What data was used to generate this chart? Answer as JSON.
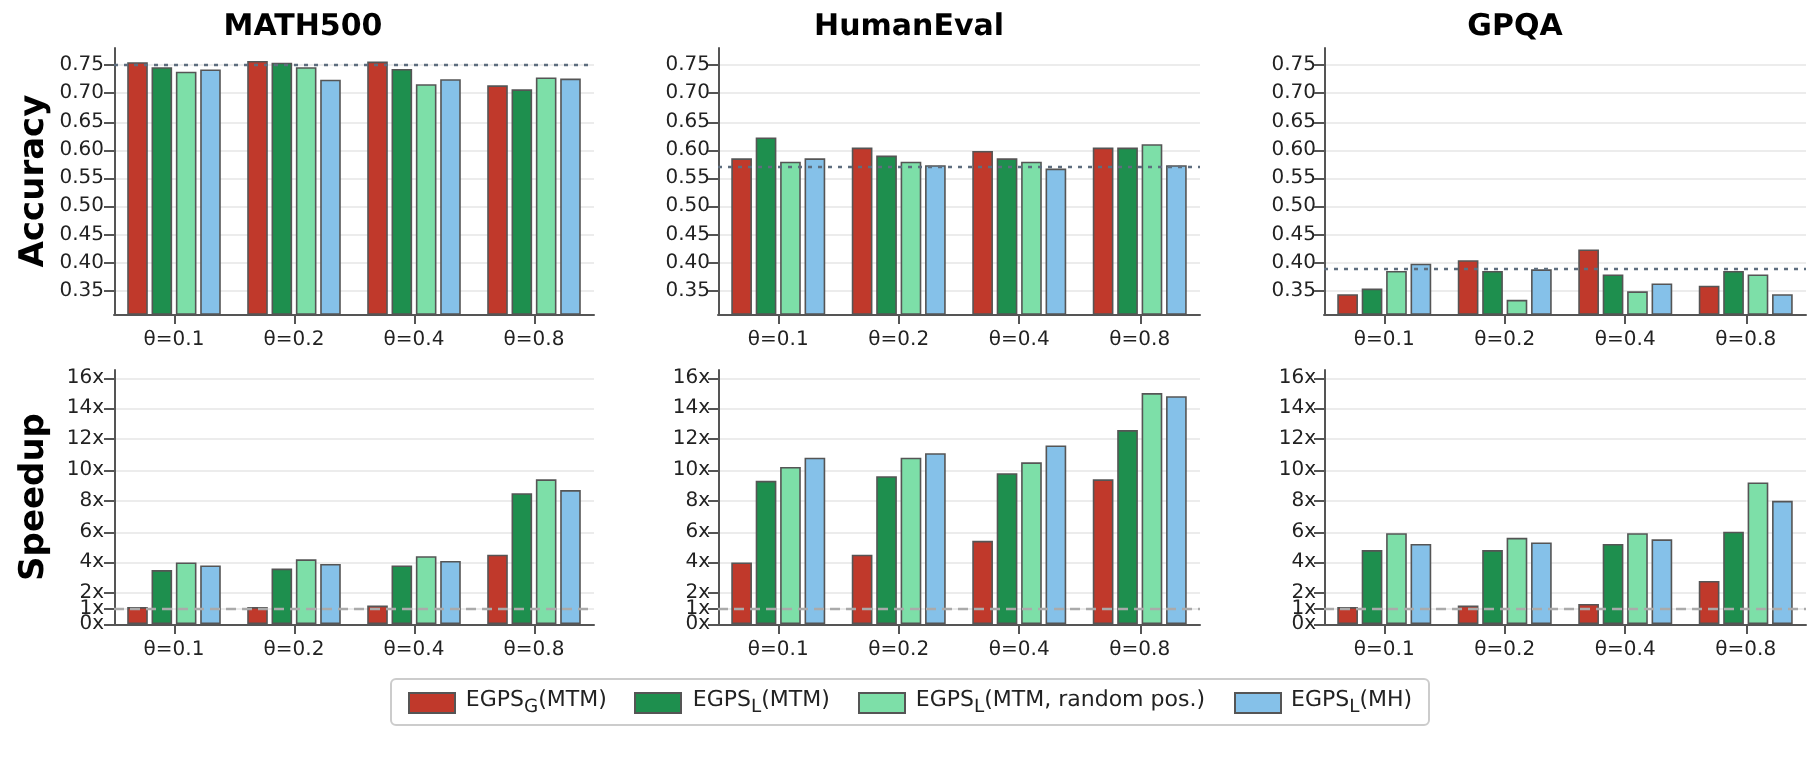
{
  "chart_data": [
    {
      "type": "bar",
      "title": "MATH500",
      "ylabel": "Accuracy",
      "categories": [
        "θ=0.1",
        "θ=0.2",
        "θ=0.4",
        "θ=0.8"
      ],
      "ylim": [
        0.31,
        0.78
      ],
      "yticks": [
        {
          "value": 0.35,
          "label": "0.35"
        },
        {
          "value": 0.4,
          "label": "0.40"
        },
        {
          "value": 0.45,
          "label": "0.45"
        },
        {
          "value": 0.5,
          "label": "0.50"
        },
        {
          "value": 0.55,
          "label": "0.55"
        },
        {
          "value": 0.6,
          "label": "0.60"
        },
        {
          "value": 0.65,
          "label": "0.65"
        },
        {
          "value": 0.7,
          "label": "0.70"
        },
        {
          "value": 0.75,
          "label": "0.75"
        }
      ],
      "grid": "y",
      "legend": "bottom",
      "ref_lines": [
        {
          "axis": "y",
          "value": 0.748,
          "color": "#5d6d7e",
          "line_style": "dotted"
        }
      ],
      "series": [
        {
          "name": "EGPS$_{G}$(MTM)",
          "color": "#c0392b",
          "values": [
            0.755,
            0.757,
            0.756,
            0.714
          ]
        },
        {
          "name": "EGPS$_{L}$(MTM)",
          "color": "#1e8f4e",
          "values": [
            0.746,
            0.754,
            0.743,
            0.707
          ]
        },
        {
          "name": "EGPS$_{L}$(MTM, random pos.)",
          "color": "#7ddfa8",
          "values": [
            0.738,
            0.746,
            0.716,
            0.728
          ]
        },
        {
          "name": "EGPS$_{L}$(MH)",
          "color": "#85c1e9",
          "values": [
            0.742,
            0.724,
            0.725,
            0.726
          ]
        }
      ]
    },
    {
      "type": "bar",
      "title": "HumanEval",
      "categories": [
        "θ=0.1",
        "θ=0.2",
        "θ=0.4",
        "θ=0.8"
      ],
      "ylim": [
        0.31,
        0.78
      ],
      "yticks": [
        {
          "value": 0.35,
          "label": "0.35"
        },
        {
          "value": 0.4,
          "label": "0.40"
        },
        {
          "value": 0.45,
          "label": "0.45"
        },
        {
          "value": 0.5,
          "label": "0.50"
        },
        {
          "value": 0.55,
          "label": "0.55"
        },
        {
          "value": 0.6,
          "label": "0.60"
        },
        {
          "value": 0.65,
          "label": "0.65"
        },
        {
          "value": 0.7,
          "label": "0.70"
        },
        {
          "value": 0.75,
          "label": "0.75"
        }
      ],
      "grid": "y",
      "legend": "bottom",
      "ref_lines": [
        {
          "axis": "y",
          "value": 0.573,
          "color": "#5d6d7e",
          "line_style": "dotted"
        }
      ],
      "series": [
        {
          "name": "EGPS$_{G}$(MTM)",
          "color": "#c0392b",
          "values": [
            0.585,
            0.604,
            0.598,
            0.604
          ]
        },
        {
          "name": "EGPS$_{L}$(MTM)",
          "color": "#1e8f4e",
          "values": [
            0.622,
            0.59,
            0.585,
            0.604
          ]
        },
        {
          "name": "EGPS$_{L}$(MTM, random pos.)",
          "color": "#7ddfa8",
          "values": [
            0.579,
            0.579,
            0.579,
            0.61
          ]
        },
        {
          "name": "EGPS$_{L}$(MH)",
          "color": "#85c1e9",
          "values": [
            0.585,
            0.573,
            0.567,
            0.573
          ]
        }
      ]
    },
    {
      "type": "bar",
      "title": "GPQA",
      "categories": [
        "θ=0.1",
        "θ=0.2",
        "θ=0.4",
        "θ=0.8"
      ],
      "ylim": [
        0.31,
        0.78
      ],
      "yticks": [
        {
          "value": 0.35,
          "label": "0.35"
        },
        {
          "value": 0.4,
          "label": "0.40"
        },
        {
          "value": 0.45,
          "label": "0.45"
        },
        {
          "value": 0.5,
          "label": "0.50"
        },
        {
          "value": 0.55,
          "label": "0.55"
        },
        {
          "value": 0.6,
          "label": "0.60"
        },
        {
          "value": 0.65,
          "label": "0.65"
        },
        {
          "value": 0.7,
          "label": "0.70"
        },
        {
          "value": 0.75,
          "label": "0.75"
        }
      ],
      "grid": "y",
      "legend": "bottom",
      "ref_lines": [
        {
          "axis": "y",
          "value": 0.389,
          "color": "#5d6d7e",
          "line_style": "dotted"
        }
      ],
      "series": [
        {
          "name": "EGPS$_{G}$(MTM)",
          "color": "#c0392b",
          "values": [
            0.345,
            0.405,
            0.424,
            0.36
          ]
        },
        {
          "name": "EGPS$_{L}$(MTM)",
          "color": "#1e8f4e",
          "values": [
            0.355,
            0.386,
            0.38,
            0.386
          ]
        },
        {
          "name": "EGPS$_{L}$(MTM, random pos.)",
          "color": "#7ddfa8",
          "values": [
            0.386,
            0.335,
            0.35,
            0.38
          ]
        },
        {
          "name": "EGPS$_{L}$(MH)",
          "color": "#85c1e9",
          "values": [
            0.399,
            0.389,
            0.364,
            0.345
          ]
        }
      ]
    },
    {
      "type": "bar",
      "ylabel": "Speedup",
      "categories": [
        "θ=0.1",
        "θ=0.2",
        "θ=0.4",
        "θ=0.8"
      ],
      "ylim": [
        0,
        16.5
      ],
      "yticks": [
        {
          "value": 0,
          "label": "0x"
        },
        {
          "value": 1,
          "label": "1x"
        },
        {
          "value": 2,
          "label": "2x"
        },
        {
          "value": 4,
          "label": "4x"
        },
        {
          "value": 6,
          "label": "6x"
        },
        {
          "value": 8,
          "label": "8x"
        },
        {
          "value": 10,
          "label": "10x"
        },
        {
          "value": 12,
          "label": "12x"
        },
        {
          "value": 14,
          "label": "14x"
        },
        {
          "value": 16,
          "label": "16x"
        }
      ],
      "grid": "y",
      "legend": "bottom",
      "ref_lines": [
        {
          "axis": "y",
          "value": 1,
          "color": "#aaaaaa",
          "line_style": "dashed"
        }
      ],
      "series": [
        {
          "name": "EGPS$_{G}$(MTM)",
          "color": "#c0392b",
          "values": [
            1.1,
            1.1,
            1.2,
            4.5
          ]
        },
        {
          "name": "EGPS$_{L}$(MTM)",
          "color": "#1e8f4e",
          "values": [
            3.5,
            3.6,
            3.8,
            8.5
          ]
        },
        {
          "name": "EGPS$_{L}$(MTM, random pos.)",
          "color": "#7ddfa8",
          "values": [
            4.0,
            4.2,
            4.4,
            9.4
          ]
        },
        {
          "name": "EGPS$_{L}$(MH)",
          "color": "#85c1e9",
          "values": [
            3.8,
            3.9,
            4.1,
            8.7
          ]
        }
      ]
    },
    {
      "type": "bar",
      "categories": [
        "θ=0.1",
        "θ=0.2",
        "θ=0.4",
        "θ=0.8"
      ],
      "ylim": [
        0,
        16.5
      ],
      "yticks": [
        {
          "value": 0,
          "label": "0x"
        },
        {
          "value": 1,
          "label": "1x"
        },
        {
          "value": 2,
          "label": "2x"
        },
        {
          "value": 4,
          "label": "4x"
        },
        {
          "value": 6,
          "label": "6x"
        },
        {
          "value": 8,
          "label": "8x"
        },
        {
          "value": 10,
          "label": "10x"
        },
        {
          "value": 12,
          "label": "12x"
        },
        {
          "value": 14,
          "label": "14x"
        },
        {
          "value": 16,
          "label": "16x"
        }
      ],
      "grid": "y",
      "legend": "bottom",
      "ref_lines": [
        {
          "axis": "y",
          "value": 1,
          "color": "#aaaaaa",
          "line_style": "dashed"
        }
      ],
      "series": [
        {
          "name": "EGPS$_{G}$(MTM)",
          "color": "#c0392b",
          "values": [
            4.0,
            4.5,
            5.4,
            9.4
          ]
        },
        {
          "name": "EGPS$_{L}$(MTM)",
          "color": "#1e8f4e",
          "values": [
            9.3,
            9.6,
            9.8,
            12.6
          ]
        },
        {
          "name": "EGPS$_{L}$(MTM, random pos.)",
          "color": "#7ddfa8",
          "values": [
            10.2,
            10.8,
            10.5,
            15.0
          ]
        },
        {
          "name": "EGPS$_{L}$(MH)",
          "color": "#85c1e9",
          "values": [
            10.8,
            11.1,
            11.6,
            14.8
          ]
        }
      ]
    },
    {
      "type": "bar",
      "categories": [
        "θ=0.1",
        "θ=0.2",
        "θ=0.4",
        "θ=0.8"
      ],
      "ylim": [
        0,
        16.5
      ],
      "yticks": [
        {
          "value": 0,
          "label": "0x"
        },
        {
          "value": 1,
          "label": "1x"
        },
        {
          "value": 2,
          "label": "2x"
        },
        {
          "value": 4,
          "label": "4x"
        },
        {
          "value": 6,
          "label": "6x"
        },
        {
          "value": 8,
          "label": "8x"
        },
        {
          "value": 10,
          "label": "10x"
        },
        {
          "value": 12,
          "label": "12x"
        },
        {
          "value": 14,
          "label": "14x"
        },
        {
          "value": 16,
          "label": "16x"
        }
      ],
      "grid": "y",
      "legend": "bottom",
      "ref_lines": [
        {
          "axis": "y",
          "value": 1,
          "color": "#aaaaaa",
          "line_style": "dashed"
        }
      ],
      "series": [
        {
          "name": "EGPS$_{G}$(MTM)",
          "color": "#c0392b",
          "values": [
            1.1,
            1.2,
            1.3,
            2.8
          ]
        },
        {
          "name": "EGPS$_{L}$(MTM)",
          "color": "#1e8f4e",
          "values": [
            4.8,
            4.8,
            5.2,
            6.0
          ]
        },
        {
          "name": "EGPS$_{L}$(MTM, random pos.)",
          "color": "#7ddfa8",
          "values": [
            5.9,
            5.6,
            5.9,
            9.2
          ]
        },
        {
          "name": "EGPS$_{L}$(MH)",
          "color": "#85c1e9",
          "values": [
            5.2,
            5.3,
            5.5,
            8.0
          ]
        }
      ]
    }
  ]
}
